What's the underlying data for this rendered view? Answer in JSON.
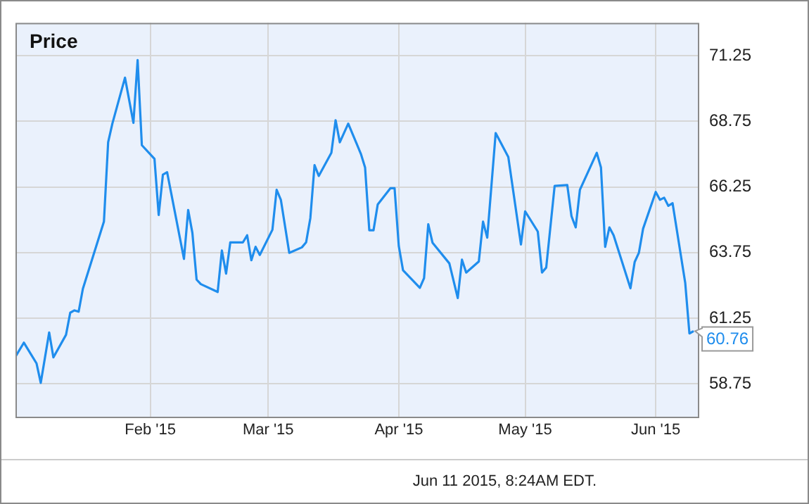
{
  "chart_data": {
    "type": "line",
    "title": "Price",
    "x": [
      "2014-12-31",
      "2015-01-02",
      "2015-01-05",
      "2015-01-06",
      "2015-01-08",
      "2015-01-09",
      "2015-01-12",
      "2015-01-13",
      "2015-01-14",
      "2015-01-15",
      "2015-01-16",
      "2015-01-21",
      "2015-01-22",
      "2015-01-23",
      "2015-01-26",
      "2015-01-28",
      "2015-01-29",
      "2015-01-30",
      "2015-02-02",
      "2015-02-03",
      "2015-02-04",
      "2015-02-05",
      "2015-02-09",
      "2015-02-10",
      "2015-02-11",
      "2015-02-12",
      "2015-02-13",
      "2015-02-17",
      "2015-02-18",
      "2015-02-19",
      "2015-02-20",
      "2015-02-23",
      "2015-02-24",
      "2015-02-25",
      "2015-02-26",
      "2015-02-27",
      "2015-03-02",
      "2015-03-03",
      "2015-03-04",
      "2015-03-06",
      "2015-03-09",
      "2015-03-10",
      "2015-03-11",
      "2015-03-12",
      "2015-03-13",
      "2015-03-16",
      "2015-03-17",
      "2015-03-18",
      "2015-03-20",
      "2015-03-23",
      "2015-03-24",
      "2015-03-25",
      "2015-03-26",
      "2015-03-27",
      "2015-03-30",
      "2015-03-31",
      "2015-04-01",
      "2015-04-02",
      "2015-04-06",
      "2015-04-07",
      "2015-04-08",
      "2015-04-09",
      "2015-04-13",
      "2015-04-15",
      "2015-04-16",
      "2015-04-17",
      "2015-04-20",
      "2015-04-21",
      "2015-04-22",
      "2015-04-24",
      "2015-04-27",
      "2015-04-30",
      "2015-05-01",
      "2015-05-04",
      "2015-05-05",
      "2015-05-06",
      "2015-05-08",
      "2015-05-11",
      "2015-05-12",
      "2015-05-13",
      "2015-05-14",
      "2015-05-18",
      "2015-05-19",
      "2015-05-20",
      "2015-05-21",
      "2015-05-22",
      "2015-05-26",
      "2015-05-27",
      "2015-05-28",
      "2015-05-29",
      "2015-06-01",
      "2015-06-02",
      "2015-06-03",
      "2015-06-04",
      "2015-06-05",
      "2015-06-08",
      "2015-06-09",
      "2015-06-10"
    ],
    "series": [
      {
        "color": "#1f8ded",
        "values": [
          59.79,
          60.32,
          59.53,
          58.79,
          60.71,
          59.76,
          60.62,
          61.46,
          61.55,
          61.5,
          62.37,
          64.93,
          67.95,
          68.66,
          70.41,
          68.69,
          71.08,
          67.84,
          67.32,
          65.18,
          66.72,
          66.81,
          63.51,
          65.37,
          64.5,
          62.72,
          62.55,
          62.25,
          63.83,
          62.95,
          64.14,
          64.14,
          64.41,
          63.46,
          63.97,
          63.66,
          64.62,
          66.14,
          65.76,
          63.74,
          63.95,
          64.14,
          65.06,
          67.08,
          66.67,
          67.55,
          68.79,
          67.95,
          68.66,
          67.51,
          66.99,
          64.6,
          64.6,
          65.58,
          66.2,
          66.2,
          64.0,
          63.08,
          62.41,
          62.78,
          64.83,
          64.13,
          63.34,
          62.02,
          63.48,
          62.99,
          63.41,
          64.93,
          64.32,
          68.3,
          67.39,
          64.06,
          65.32,
          64.55,
          62.99,
          63.18,
          66.29,
          66.32,
          65.14,
          64.71,
          66.14,
          67.55,
          66.99,
          63.97,
          64.71,
          64.41,
          62.39,
          63.39,
          63.74,
          64.66,
          66.06,
          65.76,
          65.84,
          65.53,
          65.63,
          62.6,
          60.67,
          60.76
        ]
      }
    ],
    "xlim": [
      "2014-12-31",
      "2015-06-11"
    ],
    "xticks": [
      {
        "value": "2015-02-01",
        "label": "Feb '15"
      },
      {
        "value": "2015-03-01",
        "label": "Mar '15"
      },
      {
        "value": "2015-04-01",
        "label": "Apr '15"
      },
      {
        "value": "2015-05-01",
        "label": "May '15"
      },
      {
        "value": "2015-06-01",
        "label": "Jun '15"
      }
    ],
    "ylim": [
      57.5,
      72.5
    ],
    "yticks": [
      58.75,
      61.25,
      63.75,
      66.25,
      68.75,
      71.25
    ],
    "grid": true,
    "legend": false,
    "marker": "none",
    "line_style": "solid",
    "annotations": [
      {
        "text": "60.76",
        "x": "2015-06-10",
        "y": 60.76
      },
      "Jun 11 2015, 8:24AM EDT."
    ]
  }
}
